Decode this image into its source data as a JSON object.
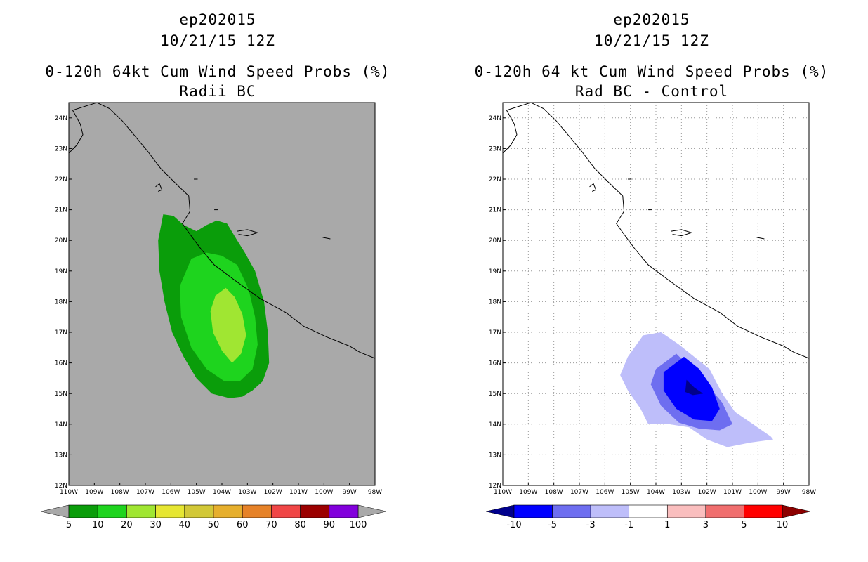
{
  "chart_data": [
    {
      "type": "filled-contour-map",
      "title_lines": [
        "ep202015",
        "10/21/15 12Z",
        "0-120h 64kt Cum Wind Speed Probs (%)",
        "Radii BC"
      ],
      "x_ticks": [
        "110W",
        "109W",
        "108W",
        "107W",
        "106W",
        "105W",
        "104W",
        "103W",
        "102W",
        "101W",
        "100W",
        "99W",
        "98W"
      ],
      "y_ticks": [
        "12N",
        "13N",
        "14N",
        "15N",
        "16N",
        "17N",
        "18N",
        "19N",
        "20N",
        "21N",
        "22N",
        "23N",
        "24N"
      ],
      "xlim": [
        -110,
        -98
      ],
      "ylim": [
        12,
        24.5
      ],
      "background_color": "#a9a9a9",
      "grid": false,
      "colorbar": {
        "labels": [
          "5",
          "10",
          "20",
          "30",
          "40",
          "50",
          "60",
          "70",
          "80",
          "90",
          "100"
        ],
        "colors": [
          "#0a9d0a",
          "#1ed41e",
          "#a0e632",
          "#e6e632",
          "#d2c837",
          "#e6af2d",
          "#e68228",
          "#f04646",
          "#9b0000",
          "#8200dc"
        ],
        "left_arrow_color": "#a9a9a9",
        "right_arrow_color": "#a9a9a9"
      },
      "contours": [
        {
          "level": 5,
          "color": "#0a9d0a",
          "points": [
            [
              -106.3,
              20.85
            ],
            [
              -105.9,
              20.8
            ],
            [
              -105.5,
              20.5
            ],
            [
              -105.0,
              20.3
            ],
            [
              -104.6,
              20.5
            ],
            [
              -104.2,
              20.65
            ],
            [
              -103.8,
              20.55
            ],
            [
              -103.4,
              20.0
            ],
            [
              -103.1,
              19.6
            ],
            [
              -102.7,
              19.0
            ],
            [
              -102.35,
              18.0
            ],
            [
              -102.2,
              17.0
            ],
            [
              -102.15,
              16.0
            ],
            [
              -102.4,
              15.4
            ],
            [
              -102.8,
              15.1
            ],
            [
              -103.2,
              14.9
            ],
            [
              -103.7,
              14.85
            ],
            [
              -104.4,
              15.0
            ],
            [
              -105.0,
              15.5
            ],
            [
              -105.5,
              16.2
            ],
            [
              -105.95,
              17.0
            ],
            [
              -106.25,
              18.0
            ],
            [
              -106.45,
              19.0
            ],
            [
              -106.5,
              20.0
            ]
          ]
        },
        {
          "level": 10,
          "color": "#1ed41e",
          "points": [
            [
              -105.2,
              19.4
            ],
            [
              -104.6,
              19.6
            ],
            [
              -104.0,
              19.5
            ],
            [
              -103.4,
              19.2
            ],
            [
              -102.95,
              18.4
            ],
            [
              -102.7,
              17.5
            ],
            [
              -102.6,
              16.6
            ],
            [
              -102.8,
              15.8
            ],
            [
              -103.3,
              15.4
            ],
            [
              -103.9,
              15.4
            ],
            [
              -104.6,
              15.8
            ],
            [
              -105.2,
              16.5
            ],
            [
              -105.6,
              17.5
            ],
            [
              -105.65,
              18.5
            ]
          ]
        },
        {
          "level": 20,
          "color": "#a0e632",
          "points": [
            [
              -103.85,
              18.45
            ],
            [
              -103.5,
              18.15
            ],
            [
              -103.2,
              17.6
            ],
            [
              -103.05,
              16.9
            ],
            [
              -103.25,
              16.3
            ],
            [
              -103.6,
              16.0
            ],
            [
              -104.0,
              16.4
            ],
            [
              -104.35,
              17.0
            ],
            [
              -104.45,
              17.7
            ],
            [
              -104.25,
              18.2
            ]
          ]
        }
      ]
    },
    {
      "type": "filled-contour-map",
      "title_lines": [
        "ep202015",
        "10/21/15 12Z",
        "0-120h 64 kt Cum Wind Speed Probs (%)",
        "Rad BC - Control"
      ],
      "x_ticks": [
        "110W",
        "109W",
        "108W",
        "107W",
        "106W",
        "105W",
        "104W",
        "103W",
        "102W",
        "101W",
        "100W",
        "99W",
        "98W"
      ],
      "y_ticks": [
        "12N",
        "13N",
        "14N",
        "15N",
        "16N",
        "17N",
        "18N",
        "19N",
        "20N",
        "21N",
        "22N",
        "23N",
        "24N"
      ],
      "xlim": [
        -110,
        -98
      ],
      "ylim": [
        12,
        24.5
      ],
      "background_color": "#ffffff",
      "grid": true,
      "colorbar": {
        "labels": [
          "-10",
          "-5",
          "-3",
          "-1",
          "1",
          "3",
          "5",
          "10"
        ],
        "colors": [
          "#0000ff",
          "#6e6ef0",
          "#bebefa",
          "#ffffff",
          "#fabebe",
          "#f06e6e",
          "#ff0000"
        ],
        "left_arrow_color": "#00008c",
        "right_arrow_color": "#8c0000"
      },
      "contours": [
        {
          "level": -1,
          "color": "#bebefa",
          "points": [
            [
              -104.5,
              16.9
            ],
            [
              -103.8,
              17.0
            ],
            [
              -103.1,
              16.6
            ],
            [
              -102.5,
              16.2
            ],
            [
              -101.9,
              15.8
            ],
            [
              -101.4,
              15.0
            ],
            [
              -100.9,
              14.4
            ],
            [
              -100.2,
              14.0
            ],
            [
              -99.5,
              13.6
            ],
            [
              -99.4,
              13.5
            ],
            [
              -100.3,
              13.4
            ],
            [
              -101.2,
              13.25
            ],
            [
              -102.0,
              13.5
            ],
            [
              -102.7,
              13.9
            ],
            [
              -103.5,
              14.0
            ],
            [
              -104.3,
              14.0
            ],
            [
              -104.6,
              14.5
            ],
            [
              -105.1,
              15.1
            ],
            [
              -105.4,
              15.6
            ],
            [
              -105.1,
              16.2
            ]
          ]
        },
        {
          "level": -3,
          "color": "#6e6ef0",
          "points": [
            [
              -103.2,
              16.3
            ],
            [
              -102.6,
              15.8
            ],
            [
              -102.0,
              15.3
            ],
            [
              -101.4,
              14.7
            ],
            [
              -101.0,
              14.0
            ],
            [
              -101.5,
              13.8
            ],
            [
              -102.3,
              13.85
            ],
            [
              -103.1,
              14.05
            ],
            [
              -103.8,
              14.6
            ],
            [
              -104.2,
              15.3
            ],
            [
              -104.0,
              15.8
            ]
          ]
        },
        {
          "level": -5,
          "color": "#0000ff",
          "points": [
            [
              -102.9,
              16.2
            ],
            [
              -102.3,
              15.8
            ],
            [
              -101.8,
              15.2
            ],
            [
              -101.5,
              14.5
            ],
            [
              -101.8,
              14.1
            ],
            [
              -102.5,
              14.15
            ],
            [
              -103.2,
              14.5
            ],
            [
              -103.7,
              15.1
            ],
            [
              -103.7,
              15.7
            ]
          ]
        },
        {
          "level": -10,
          "color": "#00008c",
          "points": [
            [
              -102.8,
              15.45
            ],
            [
              -102.5,
              15.2
            ],
            [
              -102.15,
              15.0
            ],
            [
              -102.55,
              14.95
            ],
            [
              -102.85,
              15.05
            ]
          ]
        }
      ]
    }
  ]
}
